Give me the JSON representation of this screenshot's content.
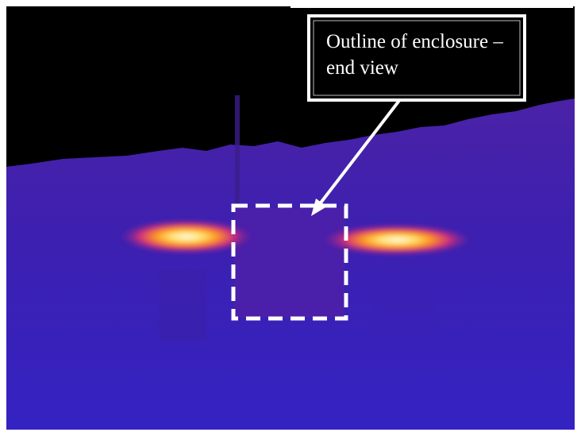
{
  "annotation": {
    "lines": [
      "Outline of enclosure –",
      "end view"
    ]
  }
}
